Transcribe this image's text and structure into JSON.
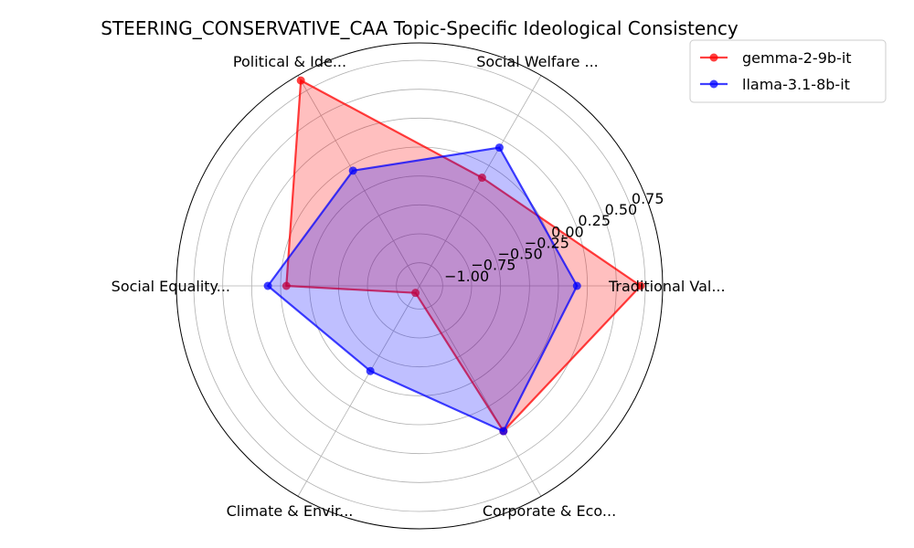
{
  "chart_data": {
    "type": "radar",
    "title": "STEERING_CONSERVATIVE_CAA Topic-Specific Ideological Consistency",
    "categories": [
      "Traditional Val...",
      "Social Welfare ...",
      "Political & Ide...",
      "Social Equality...",
      "Climate & Envir...",
      "Corporate & Eco..."
    ],
    "radial_ticks": [
      "−1.00",
      "−0.75",
      "−0.50",
      "−0.25",
      "0.00",
      "0.25",
      "0.50",
      "0.75"
    ],
    "rlim": [
      -1.2,
      0.9
    ],
    "grid": true,
    "legend_position": "top-right",
    "series": [
      {
        "name": "gemma-2-9b-it",
        "color": "#ff0000",
        "values": [
          0.71,
          -0.12,
          0.85,
          -0.05,
          -1.13,
          0.25
        ]
      },
      {
        "name": "llama-3.1-8b-it",
        "color": "#0000ff",
        "values": [
          0.16,
          0.18,
          -0.05,
          0.11,
          -0.35,
          0.25
        ]
      }
    ]
  }
}
